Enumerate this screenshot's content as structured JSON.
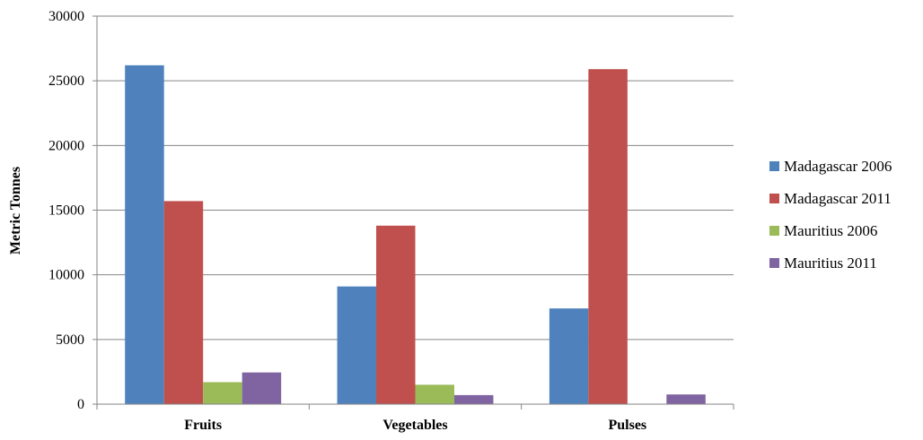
{
  "chart_data": {
    "type": "bar",
    "title": "",
    "xlabel": "",
    "ylabel": "Metric Tonnes",
    "ylim": [
      0,
      30000
    ],
    "yticks": [
      0,
      5000,
      10000,
      15000,
      20000,
      25000,
      30000
    ],
    "grid": true,
    "legend_position": "right",
    "categories": [
      "Fruits",
      "Vegetables",
      "Pulses"
    ],
    "series": [
      {
        "name": "Madagascar 2006",
        "color": "#4F81BD",
        "values": [
          26200,
          9100,
          7400
        ]
      },
      {
        "name": "Madagascar 2011",
        "color": "#C0504D",
        "values": [
          15700,
          13800,
          25900
        ]
      },
      {
        "name": "Mauritius 2006",
        "color": "#9BBB59",
        "values": [
          1700,
          1500,
          0
        ]
      },
      {
        "name": "Mauritius 2011",
        "color": "#8064A2",
        "values": [
          2450,
          700,
          750
        ]
      }
    ]
  }
}
